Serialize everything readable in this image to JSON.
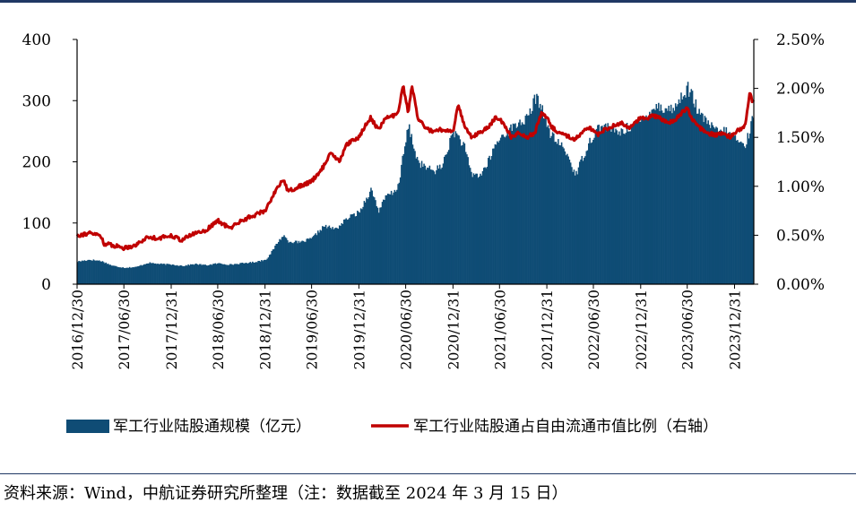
{
  "chart_data": {
    "type": "bar+line",
    "x_start": "2016-12-30",
    "x_end": "2024-03-15",
    "x_tick_labels": [
      "2016/12/30",
      "2017/06/30",
      "2017/12/31",
      "2018/06/30",
      "2018/12/31",
      "2019/06/30",
      "2019/12/31",
      "2020/06/30",
      "2020/12/31",
      "2021/06/30",
      "2021/12/31",
      "2022/06/30",
      "2022/12/31",
      "2023/06/30",
      "2023/12/31"
    ],
    "y_left": {
      "range": [
        0,
        400
      ],
      "ticks": [
        "0",
        "100",
        "200",
        "300",
        "400"
      ],
      "unit": "亿元"
    },
    "y_right": {
      "range": [
        0,
        0.025
      ],
      "ticks": [
        "0.00%",
        "0.50%",
        "1.00%",
        "1.50%",
        "2.00%",
        "2.50%"
      ]
    },
    "series": [
      {
        "name": "军工行业陆股通规模（亿元）",
        "kind": "bar",
        "axis": "left",
        "color": "#0f4c75",
        "points": [
          [
            "2016-12-30",
            37
          ],
          [
            "2017-02-15",
            40
          ],
          [
            "2017-03-31",
            38
          ],
          [
            "2017-05-15",
            30
          ],
          [
            "2017-06-30",
            27
          ],
          [
            "2017-08-15",
            28
          ],
          [
            "2017-09-30",
            35
          ],
          [
            "2017-11-15",
            33
          ],
          [
            "2017-12-31",
            32
          ],
          [
            "2018-02-15",
            30
          ],
          [
            "2018-03-31",
            33
          ],
          [
            "2018-05-15",
            31
          ],
          [
            "2018-06-30",
            34
          ],
          [
            "2018-08-15",
            32
          ],
          [
            "2018-09-30",
            34
          ],
          [
            "2018-11-15",
            36
          ],
          [
            "2018-12-31",
            40
          ],
          [
            "2019-01-20",
            50
          ],
          [
            "2019-02-15",
            68
          ],
          [
            "2019-03-10",
            80
          ],
          [
            "2019-03-31",
            70
          ],
          [
            "2019-05-15",
            68
          ],
          [
            "2019-06-30",
            75
          ],
          [
            "2019-08-15",
            95
          ],
          [
            "2019-09-30",
            90
          ],
          [
            "2019-11-15",
            108
          ],
          [
            "2019-12-31",
            118
          ],
          [
            "2020-01-20",
            135
          ],
          [
            "2020-02-15",
            155
          ],
          [
            "2020-03-15",
            120
          ],
          [
            "2020-04-15",
            145
          ],
          [
            "2020-05-15",
            150
          ],
          [
            "2020-06-01",
            165
          ],
          [
            "2020-06-20",
            215
          ],
          [
            "2020-07-10",
            260
          ],
          [
            "2020-07-25",
            230
          ],
          [
            "2020-08-15",
            200
          ],
          [
            "2020-09-15",
            190
          ],
          [
            "2020-10-15",
            185
          ],
          [
            "2020-11-15",
            192
          ],
          [
            "2020-12-31",
            250
          ],
          [
            "2021-01-20",
            240
          ],
          [
            "2021-02-10",
            225
          ],
          [
            "2021-03-10",
            180
          ],
          [
            "2021-04-15",
            178
          ],
          [
            "2021-05-15",
            200
          ],
          [
            "2021-06-15",
            230
          ],
          [
            "2021-07-15",
            245
          ],
          [
            "2021-08-15",
            255
          ],
          [
            "2021-09-15",
            265
          ],
          [
            "2021-10-15",
            270
          ],
          [
            "2021-11-15",
            305
          ],
          [
            "2021-12-10",
            290
          ],
          [
            "2021-12-31",
            255
          ],
          [
            "2022-01-20",
            240
          ],
          [
            "2022-02-15",
            230
          ],
          [
            "2022-03-15",
            215
          ],
          [
            "2022-04-20",
            178
          ],
          [
            "2022-05-15",
            205
          ],
          [
            "2022-06-15",
            235
          ],
          [
            "2022-07-15",
            255
          ],
          [
            "2022-08-15",
            258
          ],
          [
            "2022-09-15",
            250
          ],
          [
            "2022-10-15",
            248
          ],
          [
            "2022-11-15",
            258
          ],
          [
            "2022-12-31",
            265
          ],
          [
            "2023-01-20",
            275
          ],
          [
            "2023-02-15",
            290
          ],
          [
            "2023-03-15",
            290
          ],
          [
            "2023-04-15",
            285
          ],
          [
            "2023-05-15",
            290
          ],
          [
            "2023-06-10",
            310
          ],
          [
            "2023-06-30",
            320
          ],
          [
            "2023-07-20",
            305
          ],
          [
            "2023-08-15",
            275
          ],
          [
            "2023-09-15",
            265
          ],
          [
            "2023-10-15",
            250
          ],
          [
            "2023-11-15",
            250
          ],
          [
            "2023-12-15",
            245
          ],
          [
            "2023-12-31",
            240
          ],
          [
            "2024-01-20",
            230
          ],
          [
            "2024-02-10",
            228
          ],
          [
            "2024-02-28",
            255
          ],
          [
            "2024-03-15",
            282
          ]
        ]
      },
      {
        "name": "军工行业陆股通占自由流通市值比例（右轴）",
        "kind": "line",
        "axis": "right",
        "color": "#c00000",
        "points": [
          [
            "2016-12-30",
            0.005
          ],
          [
            "2017-02-15",
            0.0052
          ],
          [
            "2017-03-31",
            0.005
          ],
          [
            "2017-04-15",
            0.0041
          ],
          [
            "2017-05-15",
            0.004
          ],
          [
            "2017-06-30",
            0.0037
          ],
          [
            "2017-08-15",
            0.004
          ],
          [
            "2017-09-30",
            0.0048
          ],
          [
            "2017-11-15",
            0.0047
          ],
          [
            "2017-12-31",
            0.005
          ],
          [
            "2018-02-10",
            0.0045
          ],
          [
            "2018-03-31",
            0.0052
          ],
          [
            "2018-05-15",
            0.0055
          ],
          [
            "2018-06-30",
            0.0065
          ],
          [
            "2018-08-15",
            0.0057
          ],
          [
            "2018-09-30",
            0.0065
          ],
          [
            "2018-11-15",
            0.007
          ],
          [
            "2018-12-31",
            0.0075
          ],
          [
            "2019-01-20",
            0.0085
          ],
          [
            "2019-02-15",
            0.0098
          ],
          [
            "2019-03-10",
            0.0107
          ],
          [
            "2019-03-31",
            0.0095
          ],
          [
            "2019-05-15",
            0.01
          ],
          [
            "2019-06-30",
            0.0105
          ],
          [
            "2019-08-15",
            0.012
          ],
          [
            "2019-09-15",
            0.0135
          ],
          [
            "2019-10-15",
            0.0125
          ],
          [
            "2019-11-15",
            0.0143
          ],
          [
            "2019-12-31",
            0.015
          ],
          [
            "2020-01-20",
            0.016
          ],
          [
            "2020-02-15",
            0.017
          ],
          [
            "2020-03-15",
            0.0158
          ],
          [
            "2020-04-15",
            0.017
          ],
          [
            "2020-05-15",
            0.0172
          ],
          [
            "2020-06-01",
            0.0175
          ],
          [
            "2020-06-20",
            0.0203
          ],
          [
            "2020-07-10",
            0.0175
          ],
          [
            "2020-07-25",
            0.0203
          ],
          [
            "2020-08-15",
            0.017
          ],
          [
            "2020-09-15",
            0.016
          ],
          [
            "2020-10-15",
            0.0155
          ],
          [
            "2020-11-15",
            0.0158
          ],
          [
            "2020-12-31",
            0.0155
          ],
          [
            "2021-01-20",
            0.0185
          ],
          [
            "2021-02-15",
            0.016
          ],
          [
            "2021-03-15",
            0.015
          ],
          [
            "2021-04-15",
            0.0155
          ],
          [
            "2021-05-15",
            0.016
          ],
          [
            "2021-06-15",
            0.017
          ],
          [
            "2021-07-15",
            0.0165
          ],
          [
            "2021-08-15",
            0.015
          ],
          [
            "2021-09-15",
            0.0155
          ],
          [
            "2021-10-15",
            0.015
          ],
          [
            "2021-11-15",
            0.0155
          ],
          [
            "2021-12-10",
            0.0175
          ],
          [
            "2021-12-31",
            0.017
          ],
          [
            "2022-01-20",
            0.016
          ],
          [
            "2022-02-15",
            0.0155
          ],
          [
            "2022-03-15",
            0.0152
          ],
          [
            "2022-04-20",
            0.0148
          ],
          [
            "2022-05-15",
            0.0155
          ],
          [
            "2022-06-15",
            0.016
          ],
          [
            "2022-07-15",
            0.0152
          ],
          [
            "2022-08-15",
            0.0158
          ],
          [
            "2022-09-15",
            0.0162
          ],
          [
            "2022-10-15",
            0.0165
          ],
          [
            "2022-11-15",
            0.016
          ],
          [
            "2022-12-31",
            0.017
          ],
          [
            "2023-01-20",
            0.0168
          ],
          [
            "2023-02-15",
            0.0172
          ],
          [
            "2023-03-15",
            0.017
          ],
          [
            "2023-04-15",
            0.0165
          ],
          [
            "2023-05-15",
            0.0168
          ],
          [
            "2023-06-10",
            0.0175
          ],
          [
            "2023-06-30",
            0.018
          ],
          [
            "2023-07-20",
            0.0168
          ],
          [
            "2023-08-15",
            0.016
          ],
          [
            "2023-09-15",
            0.0155
          ],
          [
            "2023-10-15",
            0.0152
          ],
          [
            "2023-11-15",
            0.0155
          ],
          [
            "2023-12-15",
            0.015
          ],
          [
            "2023-12-31",
            0.0155
          ],
          [
            "2024-01-20",
            0.0158
          ],
          [
            "2024-02-10",
            0.0162
          ],
          [
            "2024-02-28",
            0.0195
          ],
          [
            "2024-03-08",
            0.0188
          ],
          [
            "2024-03-15",
            0.019
          ]
        ]
      }
    ],
    "legend_position": "bottom",
    "grid": false
  },
  "source_note": "资料来源：Wind，中航证券研究所整理（注：数据截至 2024 年 3 月 15 日）"
}
